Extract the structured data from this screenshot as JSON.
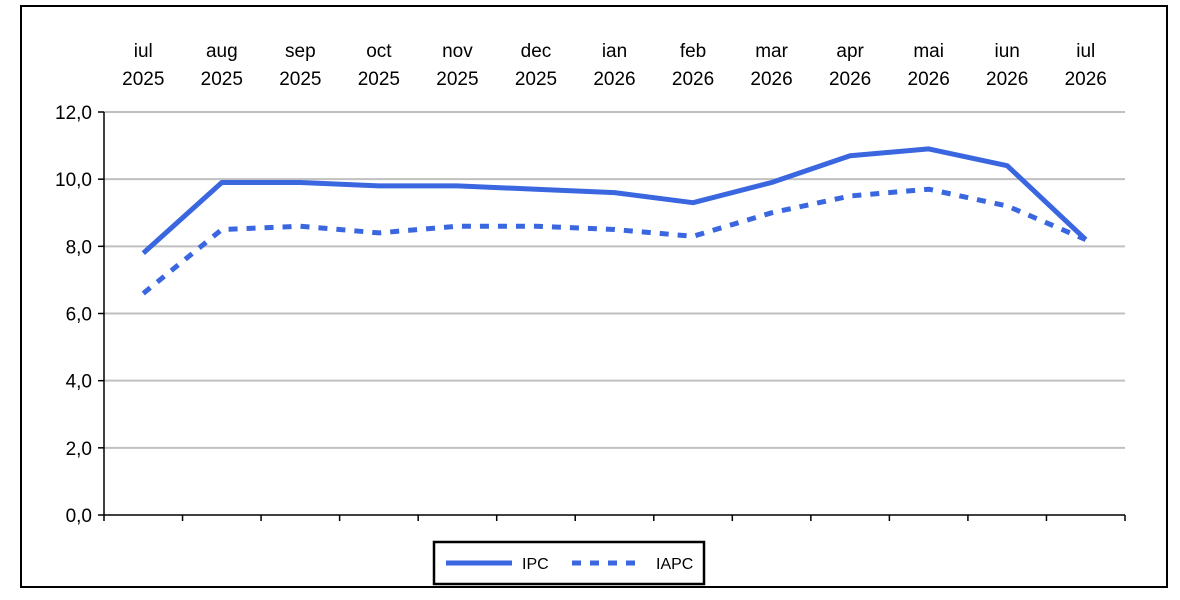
{
  "chart_data": {
    "type": "line",
    "title": "",
    "xlabel": "",
    "ylabel": "",
    "categories": [
      {
        "month": "iul",
        "year": "2025"
      },
      {
        "month": "aug",
        "year": "2025"
      },
      {
        "month": "sep",
        "year": "2025"
      },
      {
        "month": "oct",
        "year": "2025"
      },
      {
        "month": "nov",
        "year": "2025"
      },
      {
        "month": "dec",
        "year": "2025"
      },
      {
        "month": "ian",
        "year": "2026"
      },
      {
        "month": "feb",
        "year": "2026"
      },
      {
        "month": "mar",
        "year": "2026"
      },
      {
        "month": "apr",
        "year": "2026"
      },
      {
        "month": "mai",
        "year": "2026"
      },
      {
        "month": "iun",
        "year": "2026"
      },
      {
        "month": "iul",
        "year": "2026"
      }
    ],
    "series": [
      {
        "name": "IPC",
        "style": "solid",
        "color": "#3A67E0",
        "values": [
          7.8,
          9.9,
          9.9,
          9.8,
          9.8,
          9.7,
          9.6,
          9.3,
          9.9,
          10.7,
          10.9,
          10.4,
          8.2
        ]
      },
      {
        "name": "IAPC",
        "style": "dotted",
        "color": "#3A67E0",
        "values": [
          6.6,
          8.5,
          8.6,
          8.4,
          8.6,
          8.6,
          8.5,
          8.3,
          9.0,
          9.5,
          9.7,
          9.2,
          8.2
        ]
      }
    ],
    "ylim": [
      0,
      12
    ],
    "yticks": [
      "0,0",
      "2,0",
      "4,0",
      "6,0",
      "8,0",
      "10,0",
      "12,0"
    ],
    "ytick_values": [
      0,
      2,
      4,
      6,
      8,
      10,
      12
    ],
    "grid": true,
    "grid_color": "#C0C0C0",
    "legend_position": "bottom-center",
    "x_axis_position": "top"
  }
}
